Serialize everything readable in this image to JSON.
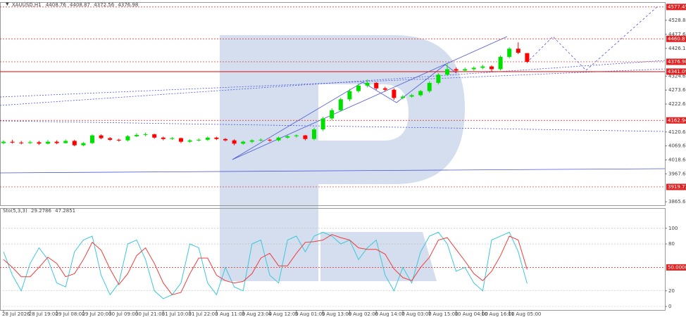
{
  "chart_data": [
    {
      "type": "candlestick",
      "title": "XAUUSD,H1",
      "categories": [
        "28 Jul 2026",
        null,
        null,
        "28 Jul 19:00",
        null,
        null,
        "29 Jul 08:00",
        null,
        null,
        "29 Jul 20:00",
        null,
        null,
        "30 Jul 09:00",
        null,
        null,
        "30 Jul 21:00",
        null,
        null,
        "31 Jul 10:00",
        null,
        null,
        "31 Jul 22:00",
        null,
        null,
        "3 Aug 11:00",
        null,
        null,
        "3 Aug 23:00",
        null,
        null,
        "4 Aug 12:00",
        null,
        null,
        "5 Aug 01:00",
        null,
        null,
        "5 Aug 13:00",
        null,
        null,
        "6 Aug 02:00",
        null,
        null,
        "6 Aug 14:00",
        null,
        null,
        "7 Aug 03:00",
        null,
        null,
        "7 Aug 15:00",
        null,
        null,
        "10 Aug 04:00",
        null,
        null,
        "10 Aug 16:00",
        null,
        null,
        "11 Aug 05:00",
        null,
        null
      ],
      "open": [
        4080,
        4085,
        4082,
        4080,
        4083,
        4078,
        4085,
        4080,
        4088,
        4072,
        4080,
        4108,
        4098,
        4092,
        4090,
        4105,
        4110,
        4112,
        4100,
        4095,
        4098,
        4085,
        4090,
        4092,
        4100,
        4095,
        4090,
        4078,
        4085,
        4090,
        4092,
        4090,
        4100,
        4105,
        4108,
        4095,
        4130,
        4170,
        4200,
        4240,
        4270,
        4290,
        4300,
        4280,
        4275,
        4245,
        4250,
        4255,
        4270,
        4300,
        4330,
        4350,
        4345,
        4350,
        4355,
        4360,
        4350,
        4395,
        4425,
        4408.76
      ],
      "high": [
        4090,
        4092,
        4088,
        4089,
        4088,
        4091,
        4090,
        4093,
        4092,
        4084,
        4112,
        4112,
        4102,
        4096,
        4109,
        4116,
        4118,
        4114,
        4104,
        4102,
        4100,
        4094,
        4097,
        4104,
        4103,
        4098,
        4094,
        4089,
        4094,
        4097,
        4096,
        4104,
        4110,
        4112,
        4110,
        4136,
        4176,
        4207,
        4246,
        4278,
        4298,
        4312,
        4303,
        4286,
        4280,
        4256,
        4260,
        4274,
        4306,
        4336,
        4372,
        4356,
        4356,
        4360,
        4366,
        4364,
        4400,
        4430,
        4448,
        4408.87
      ],
      "low": [
        4076,
        4078,
        4075,
        4077,
        4073,
        4075,
        4076,
        4078,
        4068,
        4068,
        4076,
        4094,
        4088,
        4085,
        4086,
        4102,
        4105,
        4096,
        4090,
        4092,
        4080,
        4082,
        4086,
        4088,
        4091,
        4086,
        4072,
        4074,
        4080,
        4086,
        4085,
        4086,
        4096,
        4100,
        4090,
        4090,
        4124,
        4163,
        4195,
        4233,
        4264,
        4284,
        4274,
        4268,
        4238,
        4240,
        4246,
        4250,
        4264,
        4294,
        4325,
        4338,
        4340,
        4344,
        4350,
        4340,
        4345,
        4390,
        4405,
        4372.56
      ],
      "close": [
        4085,
        4082,
        4080,
        4083,
        4078,
        4085,
        4080,
        4088,
        4072,
        4080,
        4108,
        4098,
        4092,
        4090,
        4105,
        4110,
        4112,
        4100,
        4095,
        4098,
        4085,
        4090,
        4092,
        4100,
        4095,
        4090,
        4078,
        4085,
        4090,
        4092,
        4090,
        4100,
        4105,
        4108,
        4095,
        4130,
        4170,
        4200,
        4240,
        4270,
        4290,
        4300,
        4280,
        4275,
        4245,
        4250,
        4255,
        4270,
        4300,
        4330,
        4350,
        4345,
        4350,
        4355,
        4360,
        4350,
        4395,
        4425,
        4410,
        4376.98
      ],
      "up_color": "#00e000",
      "down_color": "#ff0000",
      "ylim": [
        3852.85,
        4592.6
      ],
      "yticks": [
        {
          "value": 4528.86,
          "label": "4528.86"
        },
        {
          "value": 4477.6,
          "label": "4477.60"
        },
        {
          "value": 4426.1,
          "label": "4426.10"
        },
        {
          "value": 4324.6,
          "label": "4324.60"
        },
        {
          "value": 4273.6,
          "label": "4273.60"
        },
        {
          "value": 4222.6,
          "label": "4222.60"
        },
        {
          "value": 4120.6,
          "label": "4120.60"
        },
        {
          "value": 4069.6,
          "label": "4069.60"
        },
        {
          "value": 4018.6,
          "label": "4018.60"
        },
        {
          "value": 3967.6,
          "label": "3967.60"
        },
        {
          "value": 3865.6,
          "label": "3865.60"
        }
      ],
      "levels": [
        {
          "value": 4577.45,
          "label": "4577.45",
          "solid": false
        },
        {
          "value": 4460.87,
          "label": "4460.87",
          "solid": false
        },
        {
          "value": 4376.98,
          "label": "4376.98",
          "solid": false
        },
        {
          "value": 4341.09,
          "label": "4341.09",
          "solid": true
        },
        {
          "value": 4162.94,
          "label": "4162.94",
          "solid": false
        },
        {
          "value": 3919.73,
          "label": "3919.73",
          "solid": false
        }
      ]
    },
    {
      "type": "line",
      "title": "Sto(5,3,3)",
      "series": [
        {
          "color": "#3cc8d8",
          "values": [
            70,
            40,
            20,
            55,
            75,
            60,
            30,
            25,
            70,
            85,
            90,
            40,
            15,
            30,
            80,
            85,
            60,
            20,
            10,
            15,
            30,
            80,
            75,
            30,
            15,
            50,
            25,
            20,
            80,
            85,
            40,
            30,
            85,
            90,
            70,
            90,
            95,
            90,
            80,
            85,
            60,
            75,
            85,
            40,
            20,
            50,
            30,
            70,
            90,
            95,
            80,
            45,
            50,
            30,
            20,
            85,
            90,
            95,
            70,
            29.2786
          ]
        },
        {
          "color": "#f03c3c",
          "values": [
            60,
            50,
            38,
            38,
            50,
            63,
            55,
            38,
            42,
            60,
            82,
            72,
            48,
            28,
            42,
            65,
            75,
            55,
            30,
            15,
            18,
            42,
            62,
            62,
            40,
            33,
            30,
            32,
            42,
            62,
            68,
            52,
            52,
            68,
            82,
            83,
            85,
            92,
            88,
            85,
            75,
            73,
            73,
            67,
            48,
            37,
            33,
            50,
            63,
            85,
            88,
            73,
            58,
            42,
            33,
            45,
            65,
            90,
            85,
            47.2851
          ]
        }
      ],
      "ylim": [
        -4.5,
        125
      ],
      "yticks": [
        100,
        80,
        20,
        0
      ],
      "levels": [
        {
          "value": 50,
          "label": "50.0000"
        }
      ]
    }
  ]
}
